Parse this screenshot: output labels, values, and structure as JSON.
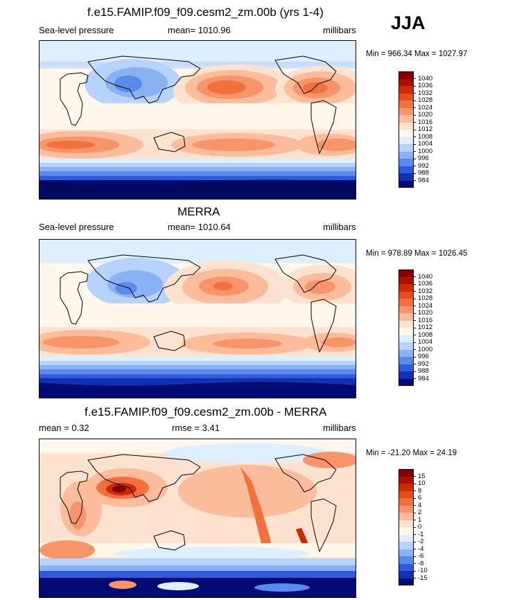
{
  "season": "JJA",
  "panels": [
    {
      "id": "model",
      "title": "f.e15.FAMIP.f09_f09.cesm2_zm.00b (yrs 1-4)",
      "left": "Sea-level pressure",
      "center": "mean= 1010.96",
      "right": "millibars",
      "minmax": "Min = 966.34 Max = 1027.97",
      "scale": "abs"
    },
    {
      "id": "obs",
      "title": "MERRA",
      "left": "Sea-level pressure",
      "center": "mean= 1010.64",
      "right": "millibars",
      "minmax": "Min = 978.89 Max = 1026.45",
      "scale": "abs"
    },
    {
      "id": "diff",
      "title": "f.e15.FAMIP.f09_f09.cesm2_zm.00b - MERRA",
      "left": "mean =   0.32",
      "center": "rmse =   3.41",
      "right": "millibars",
      "minmax": "Min = -21.20 Max =  24.19",
      "scale": "diff"
    }
  ],
  "colorbars": {
    "abs": {
      "labels": [
        "1040",
        "1036",
        "1032",
        "1028",
        "1024",
        "1020",
        "1016",
        "1012",
        "1008",
        "1004",
        "1000",
        "996",
        "992",
        "988",
        "984"
      ],
      "colors": [
        "#840000",
        "#a81200",
        "#cc2a06",
        "#e64b1c",
        "#f2703d",
        "#f7946a",
        "#fbbc9b",
        "#fde2cf",
        "#fff6ec",
        "#ddeeff",
        "#b8d3fb",
        "#8ab1f3",
        "#5a8aea",
        "#2f5bdc",
        "#1230b4",
        "#000c74"
      ]
    },
    "diff": {
      "labels": [
        "15",
        "10",
        "8",
        "6",
        "4",
        "2",
        "1",
        "0",
        "-1",
        "-2",
        "-4",
        "-6",
        "-8",
        "-10",
        "-15"
      ],
      "colors": [
        "#840000",
        "#a81200",
        "#cc2a06",
        "#e64b1c",
        "#f2703d",
        "#f7946a",
        "#fbbc9b",
        "#fde2cf",
        "#fff6ec",
        "#ddeeff",
        "#b8d3fb",
        "#8ab1f3",
        "#5a8aea",
        "#2f5bdc",
        "#1230b4",
        "#000c74"
      ]
    }
  }
}
